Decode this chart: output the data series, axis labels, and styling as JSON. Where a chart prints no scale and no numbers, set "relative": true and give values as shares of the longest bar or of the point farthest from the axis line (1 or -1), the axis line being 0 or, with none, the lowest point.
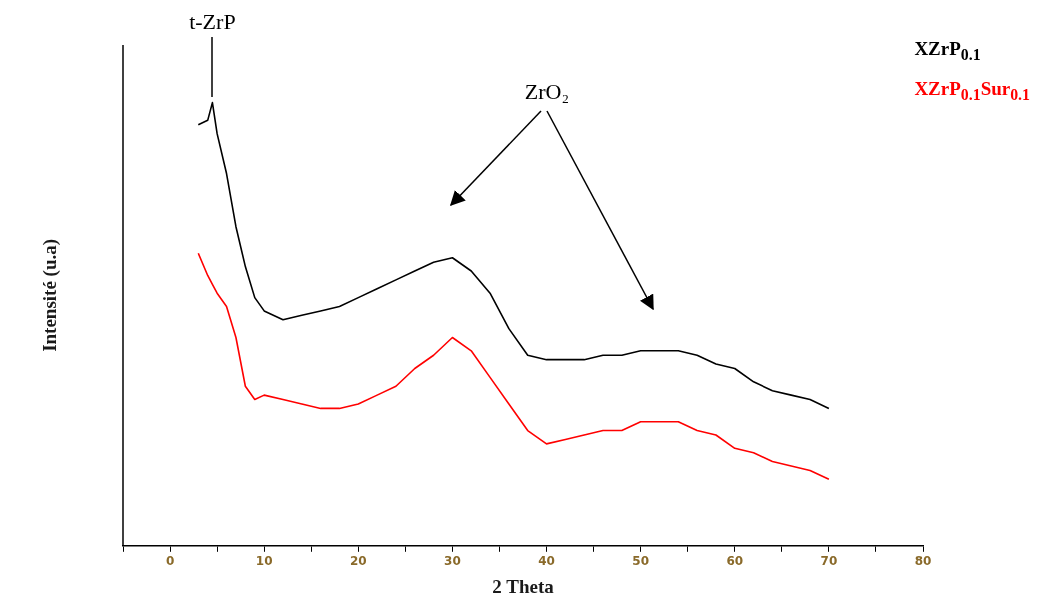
{
  "chart_data": {
    "type": "line",
    "relative": true,
    "xlabel": "2 Theta",
    "ylabel": "Intensité (u.a)",
    "xlim": [
      -5,
      80
    ],
    "xticks": [
      {
        "value": -5,
        "label": null
      },
      0,
      {
        "value": 5,
        "label": null
      },
      10,
      {
        "value": 15,
        "label": null
      },
      20,
      {
        "value": 25,
        "label": null
      },
      30,
      {
        "value": 35,
        "label": null
      },
      40,
      {
        "value": 45,
        "label": null
      },
      50,
      {
        "value": 55,
        "label": null
      },
      60,
      {
        "value": 65,
        "label": null
      },
      70,
      {
        "value": 75,
        "label": null
      },
      80
    ],
    "grid": false,
    "legend": "top right",
    "marker": "none",
    "line_style": "solid",
    "annotations": [
      {
        "text": "t-ZrP",
        "x": 4.5,
        "y": 1.0
      },
      "ZrO₂"
    ],
    "x": [
      3,
      4,
      4.5,
      5,
      6,
      7,
      8,
      9,
      10,
      12,
      14,
      16,
      18,
      20,
      22,
      24,
      26,
      28,
      30,
      32,
      34,
      36,
      38,
      40,
      42,
      44,
      46,
      48,
      50,
      52,
      54,
      56,
      58,
      60,
      62,
      64,
      66,
      68,
      70
    ],
    "series": [
      {
        "name": "XZrP$_{0.1}$",
        "color": "#000000",
        "values": [
          0.95,
          0.96,
          1.0,
          0.93,
          0.84,
          0.72,
          0.63,
          0.56,
          0.53,
          0.51,
          0.52,
          0.53,
          0.54,
          0.56,
          0.58,
          0.6,
          0.62,
          0.64,
          0.65,
          0.62,
          0.57,
          0.49,
          0.43,
          0.42,
          0.42,
          0.42,
          0.43,
          0.43,
          0.44,
          0.44,
          0.44,
          0.43,
          0.41,
          0.4,
          0.37,
          0.35,
          0.34,
          0.33,
          0.31
        ]
      },
      {
        "name": "XZrP$_{0.1}$Sur$_{0.1}$",
        "color": "#ff0000",
        "values": [
          0.66,
          0.61,
          0.59,
          0.57,
          0.54,
          0.47,
          0.36,
          0.33,
          0.34,
          0.33,
          0.32,
          0.31,
          0.31,
          0.32,
          0.34,
          0.36,
          0.4,
          0.43,
          0.47,
          0.44,
          0.38,
          0.32,
          0.26,
          0.23,
          0.24,
          0.25,
          0.26,
          0.26,
          0.28,
          0.28,
          0.28,
          0.26,
          0.25,
          0.22,
          0.21,
          0.19,
          0.18,
          0.17,
          0.15
        ]
      }
    ]
  }
}
